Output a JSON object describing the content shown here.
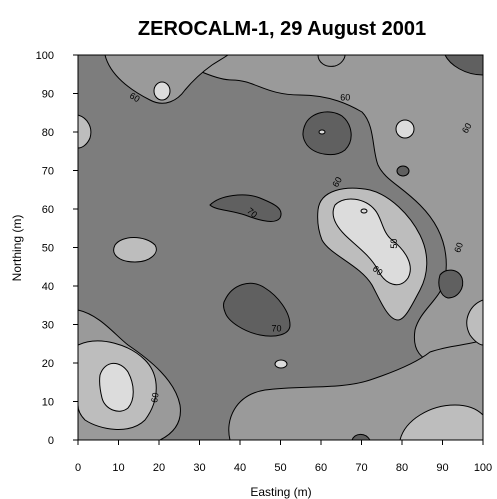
{
  "chart_data": {
    "type": "contour",
    "title": "ZEROCALM-1, 29 August 2001",
    "xlabel": "Easting (m)",
    "ylabel": "Northing (m)",
    "xlim": [
      0,
      100
    ],
    "ylim": [
      0,
      100
    ],
    "x_ticks": [
      "0",
      "10",
      "20",
      "30",
      "40",
      "50",
      "60",
      "70",
      "80",
      "90",
      "100"
    ],
    "y_ticks": [
      "0",
      "10",
      "20",
      "30",
      "40",
      "50",
      "60",
      "70",
      "80",
      "90",
      "100"
    ],
    "contour_levels": [
      50,
      60,
      70,
      80
    ],
    "fill_colors": {
      "below_50": "#dcdcdc",
      "50_60": "#bdbdbd",
      "60_70": "#9a9a9a",
      "70_80": "#7d7d7d",
      "above_80": "#606060"
    },
    "contour_labels": [
      {
        "text": "60",
        "x": 14,
        "y": 89,
        "angle": 30
      },
      {
        "text": "60",
        "x": 66,
        "y": 89,
        "angle": 0
      },
      {
        "text": "60",
        "x": 96,
        "y": 81,
        "angle": -60
      },
      {
        "text": "60",
        "x": 64,
        "y": 67,
        "angle": -60
      },
      {
        "text": "70",
        "x": 43,
        "y": 59,
        "angle": 40
      },
      {
        "text": "50",
        "x": 78,
        "y": 51,
        "angle": -90
      },
      {
        "text": "60",
        "x": 94,
        "y": 50,
        "angle": -70
      },
      {
        "text": "60",
        "x": 74,
        "y": 44,
        "angle": 40
      },
      {
        "text": "70",
        "x": 49,
        "y": 29,
        "angle": 0
      },
      {
        "text": "60",
        "x": 19,
        "y": 11,
        "angle": -80
      }
    ]
  }
}
